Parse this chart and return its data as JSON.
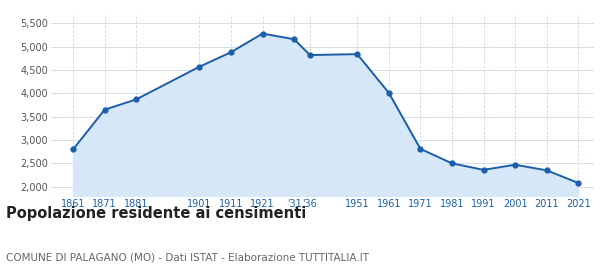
{
  "years": [
    1861,
    1871,
    1881,
    1901,
    1911,
    1921,
    1931,
    1936,
    1951,
    1961,
    1971,
    1981,
    1991,
    2001,
    2011,
    2021
  ],
  "population": [
    2800,
    3650,
    3870,
    4570,
    4880,
    5280,
    5160,
    4820,
    4840,
    4010,
    2810,
    2500,
    2360,
    2470,
    2350,
    2080
  ],
  "line_color": "#1a5fa8",
  "fill_color": "#d6e8f7",
  "marker_color": "#1a5fa8",
  "title": "Popolazione residente ai censimenti",
  "subtitle": "COMUNE DI PALAGANO (MO) - Dati ISTAT - Elaborazione TUTTITALIA.IT",
  "title_fontsize": 10.5,
  "subtitle_fontsize": 7.5,
  "ylim": [
    1800,
    5700
  ],
  "yticks": [
    2000,
    2500,
    3000,
    3500,
    4000,
    4500,
    5000,
    5500
  ],
  "ytick_labels": [
    "2,000",
    "2,500",
    "3,000",
    "3,500",
    "4,000",
    "4,500",
    "5,000",
    "5,500"
  ],
  "background_color": "#ffffff",
  "grid_color": "#d0d8e0"
}
